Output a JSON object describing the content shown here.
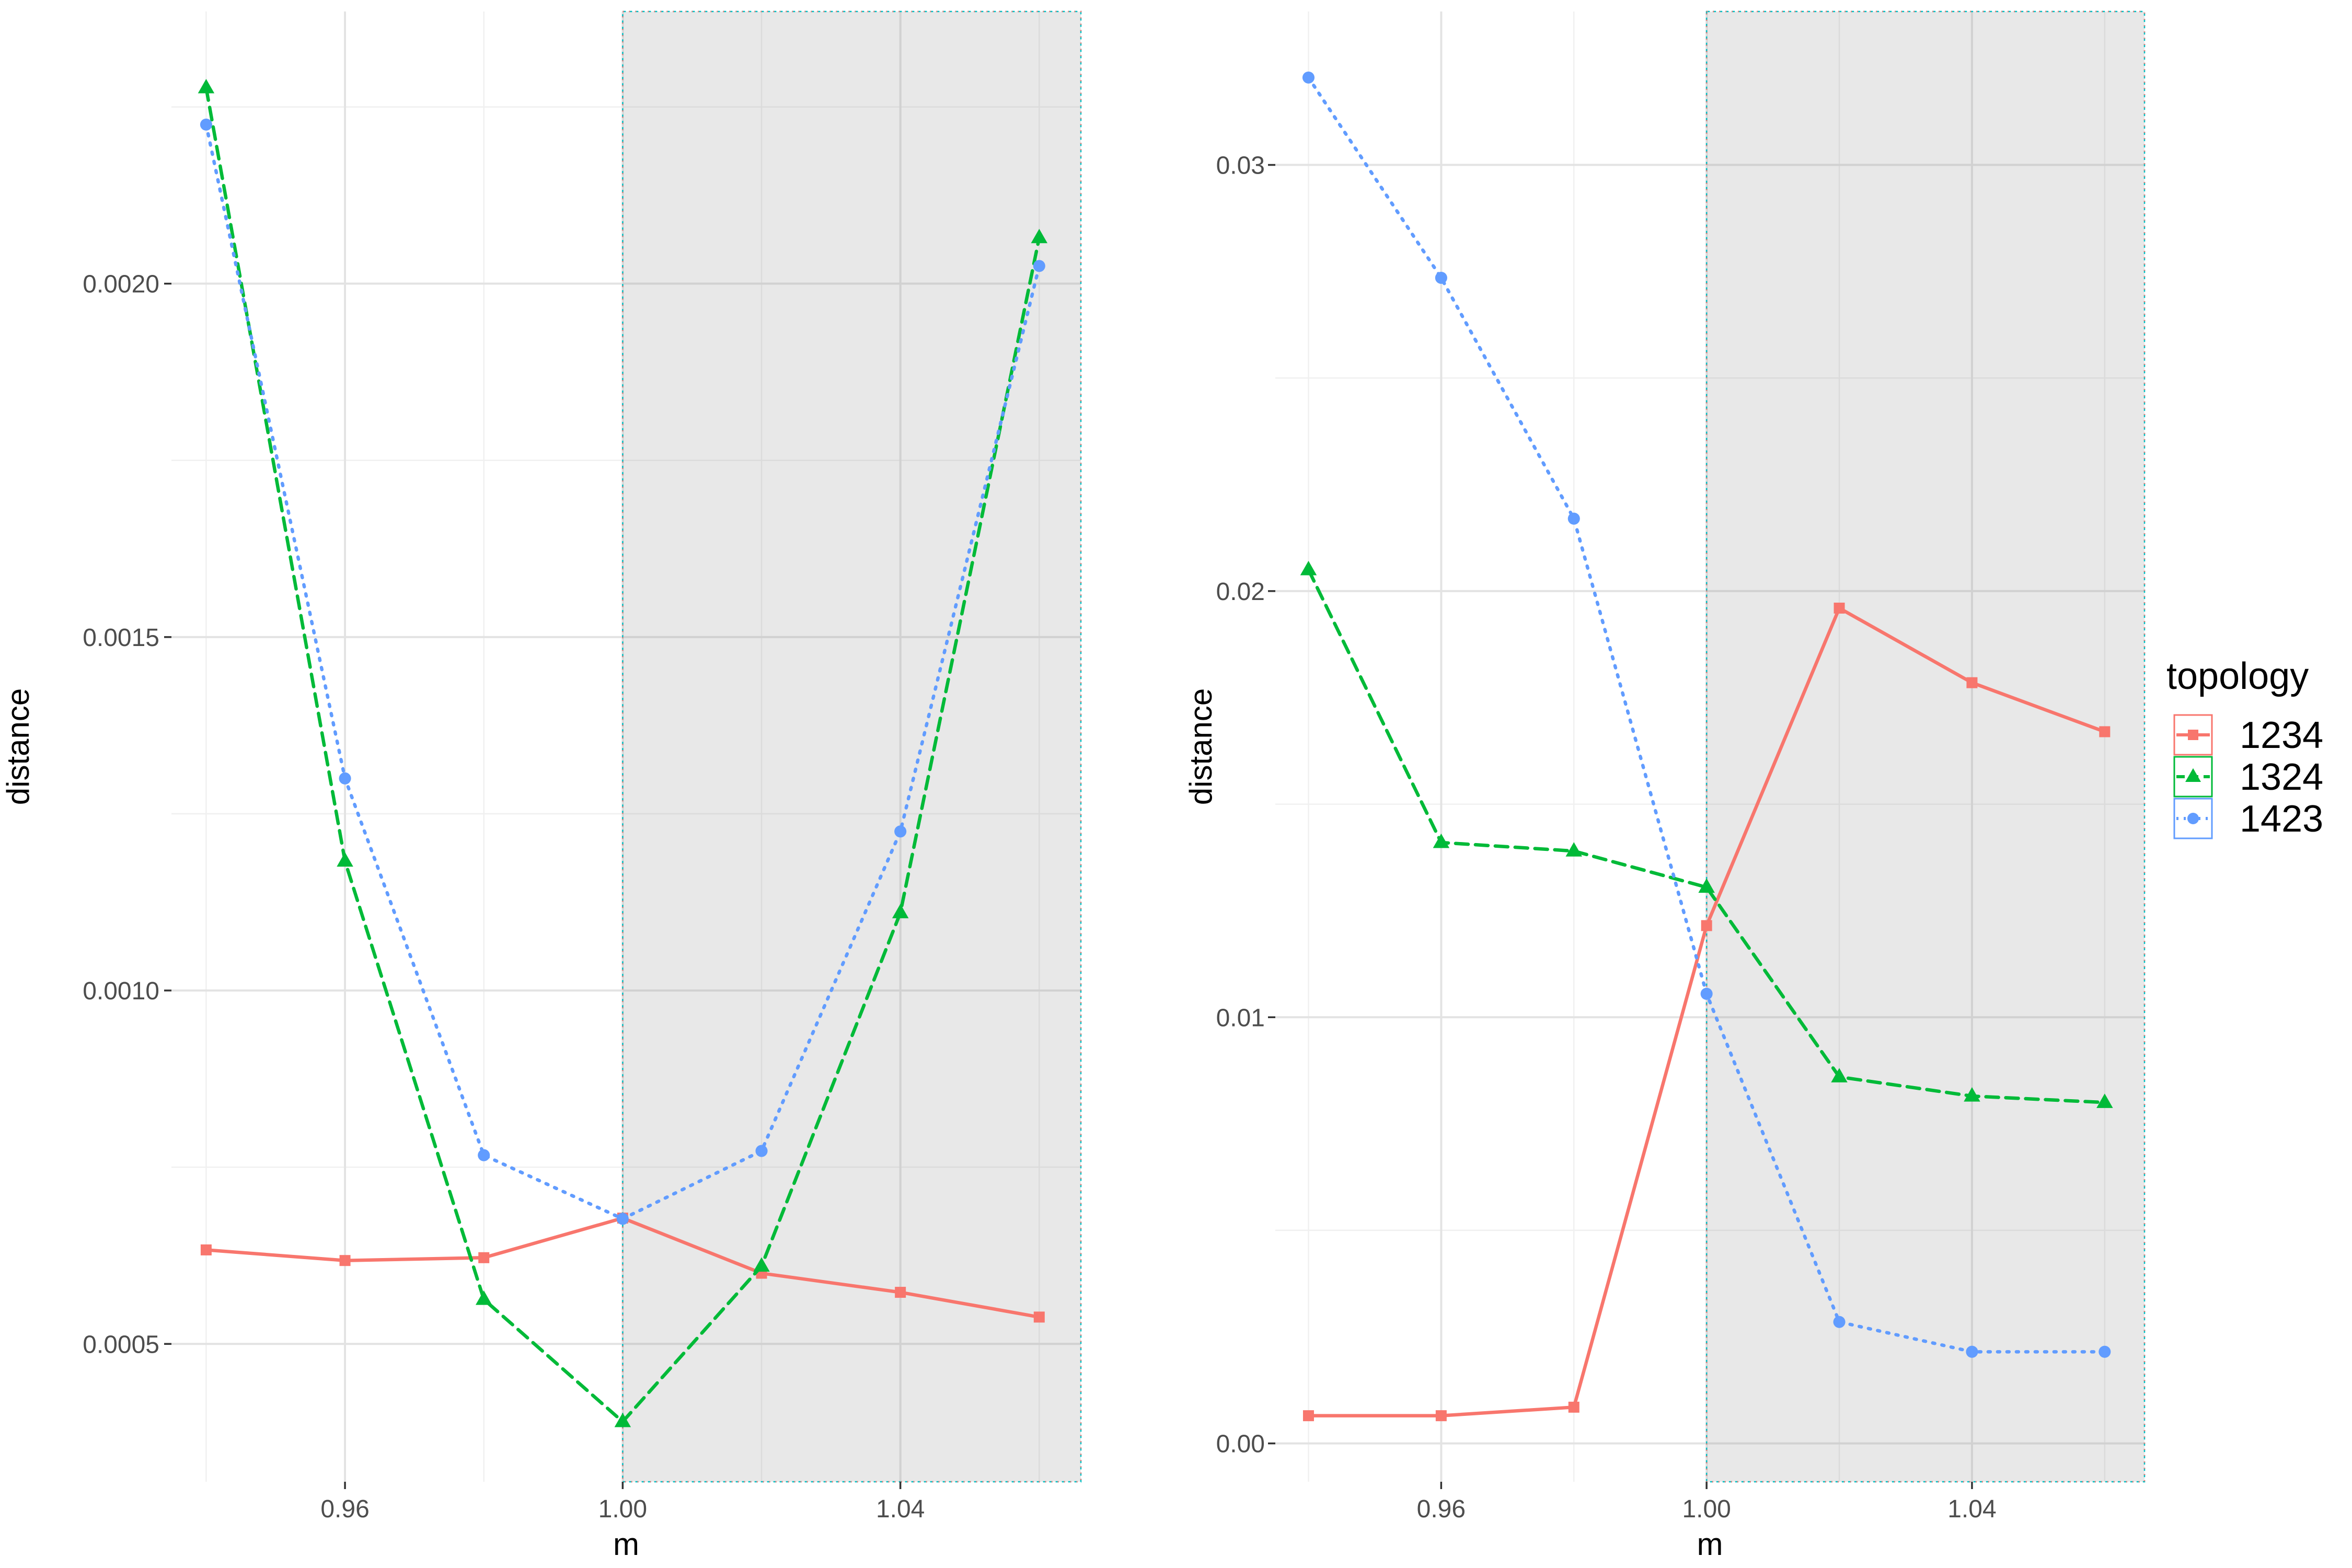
{
  "legend": {
    "title": "topology",
    "entries": [
      {
        "label": "1234",
        "color": "#F8766D",
        "linetype": "solid",
        "shape": "square"
      },
      {
        "label": "1324",
        "color": "#00BA38",
        "linetype": "dashed",
        "shape": "triangle"
      },
      {
        "label": "1423",
        "color": "#619CFF",
        "linetype": "dotted",
        "shape": "circle"
      }
    ]
  },
  "chart_data": [
    {
      "type": "line",
      "xlabel": "m",
      "ylabel": "distance",
      "xlim": [
        0.935,
        1.066
      ],
      "ylim": [
        0.000305,
        0.002385
      ],
      "x_ticks": [
        0.96,
        1.0,
        1.04
      ],
      "x_tick_labels": [
        "0.96",
        "1.00",
        "1.04"
      ],
      "y_ticks": [
        0.0005,
        0.001,
        0.0015,
        0.002
      ],
      "y_tick_labels": [
        "0.0005",
        "0.0010",
        "0.0015",
        "0.0020"
      ],
      "shaded_region": {
        "x": [
          1.0,
          1.066
        ]
      },
      "grid": true,
      "x": [
        0.94,
        0.96,
        0.98,
        1.0,
        1.02,
        1.04,
        1.06
      ],
      "series": [
        {
          "name": "1234",
          "values": [
            0.000633,
            0.000618,
            0.000622,
            0.000678,
            0.0006,
            0.000573,
            0.000538
          ]
        },
        {
          "name": "1324",
          "values": [
            0.002277,
            0.001183,
            0.000563,
            0.00039,
            0.00061,
            0.00111,
            0.002065
          ]
        },
        {
          "name": "1423",
          "values": [
            0.002225,
            0.0013,
            0.000767,
            0.000677,
            0.000773,
            0.001225,
            0.002025
          ]
        }
      ]
    },
    {
      "type": "line",
      "xlabel": "m",
      "ylabel": "distance",
      "xlim": [
        0.935,
        1.066
      ],
      "ylim": [
        -0.0009,
        0.0336
      ],
      "x_ticks": [
        0.96,
        1.0,
        1.04
      ],
      "x_tick_labels": [
        "0.96",
        "1.00",
        "1.04"
      ],
      "y_ticks": [
        0.0,
        0.01,
        0.02,
        0.03
      ],
      "y_tick_labels": [
        "0.00",
        "0.01",
        "0.02",
        "0.03"
      ],
      "shaded_region": {
        "x": [
          1.0,
          1.066
        ]
      },
      "grid": true,
      "x": [
        0.94,
        0.96,
        0.98,
        1.0,
        1.02,
        1.04,
        1.06
      ],
      "series": [
        {
          "name": "1234",
          "values": [
            0.00065,
            0.00065,
            0.00085,
            0.01215,
            0.0196,
            0.01785,
            0.0167
          ]
        },
        {
          "name": "1324",
          "values": [
            0.0205,
            0.0141,
            0.0139,
            0.01305,
            0.0086,
            0.00815,
            0.008
          ]
        },
        {
          "name": "1423",
          "values": [
            0.03205,
            0.02735,
            0.0217,
            0.01055,
            0.00285,
            0.00215,
            0.00215
          ]
        }
      ]
    }
  ]
}
